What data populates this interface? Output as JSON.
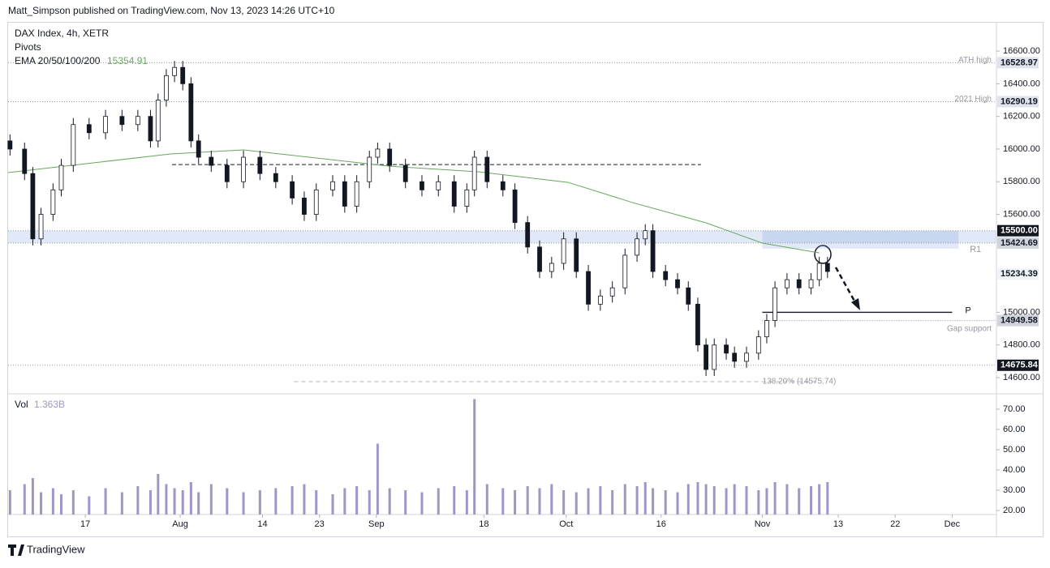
{
  "header": {
    "text": "Matt_Simpson published on TradingView.com, Nov 13, 2023 14:26 UTC+10"
  },
  "footer": {
    "brand": "TradingView"
  },
  "chart_data": [
    {
      "type": "candlestick",
      "title": "DAX Index, 4h, XETR",
      "subtitle": "Pivots",
      "indicator": {
        "name": "EMA 20/50/100/200",
        "value": 15354.91,
        "color": "#66a85c",
        "x": [
          4.8,
          30.5,
          42,
          65.1,
          79.2,
          93.3,
          103.5,
          115.1,
          124,
          133
        ],
        "values": [
          15856,
          15970,
          15995,
          15895,
          15860,
          15796,
          15672,
          15548,
          15424,
          15364
        ]
      },
      "x": [
        5.1,
        7.4,
        8.7,
        10,
        11.9,
        13.2,
        15.1,
        17.6,
        20.2,
        22.8,
        25.3,
        27.3,
        28.5,
        29.8,
        31.1,
        32.4,
        33.7,
        34.9,
        36.9,
        39.4,
        42,
        44.6,
        47.1,
        49.7,
        51.6,
        53.5,
        56.1,
        58,
        59.9,
        61.9,
        63.2,
        65.1,
        67.6,
        70.2,
        72.8,
        75.3,
        77.3,
        78.5,
        80.5,
        83,
        84.9,
        86.9,
        88.8,
        90.7,
        92.6,
        94.6,
        96.5,
        98.4,
        100.3,
        102.3,
        104.2,
        105.5,
        106.7,
        108.7,
        110.6,
        112.3,
        113.8,
        115.1,
        116.4,
        118.3,
        119.6,
        121.5,
        123.4,
        124.7,
        126,
        127.9,
        129.8,
        131.7,
        133,
        134.3
      ],
      "open": [
        16050,
        16000,
        15850,
        15450,
        15600,
        15750,
        15900,
        16150,
        16100,
        16200,
        16150,
        16200,
        16050,
        16300,
        16450,
        16500,
        16400,
        16050,
        15950,
        15900,
        15800,
        15950,
        15850,
        15800,
        15700,
        15600,
        15750,
        15800,
        15650,
        15800,
        15950,
        16000,
        15900,
        15800,
        15750,
        15800,
        15650,
        15750,
        15950,
        15800,
        15750,
        15550,
        15400,
        15250,
        15300,
        15450,
        15250,
        15050,
        15100,
        15150,
        15350,
        15450,
        15500,
        15250,
        15200,
        15150,
        15050,
        14800,
        14650,
        14800,
        14750,
        14700,
        14750,
        14850,
        14950,
        15150,
        15200,
        15150,
        15200,
        15300
      ],
      "high": [
        16090,
        16040,
        15890,
        15640,
        15790,
        15940,
        16190,
        16190,
        16240,
        16240,
        16240,
        16240,
        16340,
        16490,
        16540,
        16540,
        16440,
        16090,
        15990,
        15940,
        15990,
        15990,
        15890,
        15840,
        15740,
        15790,
        15840,
        15840,
        15840,
        15990,
        16040,
        16040,
        15940,
        15840,
        15840,
        15840,
        15790,
        15990,
        15990,
        15840,
        15790,
        15590,
        15440,
        15340,
        15490,
        15490,
        15290,
        15140,
        15190,
        15390,
        15490,
        15540,
        15540,
        15290,
        15240,
        15190,
        15090,
        14840,
        14840,
        14840,
        14790,
        14790,
        14890,
        14990,
        15190,
        15240,
        15240,
        15240,
        15340,
        15340
      ],
      "low": [
        15960,
        15810,
        15410,
        15410,
        15560,
        15710,
        15860,
        16060,
        16060,
        16110,
        16110,
        16010,
        16010,
        16260,
        16410,
        16360,
        16010,
        15910,
        15860,
        15760,
        15760,
        15810,
        15760,
        15660,
        15560,
        15560,
        15710,
        15610,
        15610,
        15760,
        15910,
        15860,
        15760,
        15710,
        15710,
        15610,
        15610,
        15710,
        15760,
        15710,
        15510,
        15360,
        15210,
        15210,
        15260,
        15210,
        15010,
        15010,
        15060,
        15110,
        15310,
        15410,
        15210,
        15160,
        15110,
        15010,
        14760,
        14610,
        14610,
        14710,
        14660,
        14660,
        14710,
        14810,
        14910,
        15110,
        15110,
        15110,
        15160,
        15210
      ],
      "close": [
        16000,
        15850,
        15450,
        15600,
        15750,
        15900,
        16150,
        16100,
        16200,
        16150,
        16200,
        16050,
        16300,
        16450,
        16500,
        16400,
        16050,
        15950,
        15900,
        15800,
        15950,
        15850,
        15800,
        15700,
        15600,
        15750,
        15800,
        15650,
        15800,
        15950,
        16000,
        15900,
        15800,
        15750,
        15800,
        15650,
        15750,
        15950,
        15800,
        15750,
        15550,
        15400,
        15250,
        15300,
        15450,
        15250,
        15050,
        15100,
        15150,
        15350,
        15450,
        15500,
        15250,
        15200,
        15150,
        15050,
        14800,
        14650,
        14800,
        14750,
        14700,
        14750,
        14850,
        14950,
        15150,
        15200,
        15150,
        15200,
        15300,
        15250
      ],
      "ylim": [
        14506,
        16774
      ],
      "yticks": [
        {
          "value": 16600,
          "label": "16600.00"
        },
        {
          "value": 16400,
          "label": "16400.00"
        },
        {
          "value": 16200,
          "label": "16200.00"
        },
        {
          "value": 16000,
          "label": "16000.00"
        },
        {
          "value": 15800,
          "label": "15800.00"
        },
        {
          "value": 15600,
          "label": "15600.00"
        },
        {
          "value": 15000,
          "label": "15000.00"
        },
        {
          "value": 14800,
          "label": "14800.00"
        },
        {
          "value": 14600,
          "label": "14600.00"
        }
      ],
      "xlim": [
        4.8,
        161
      ],
      "xticks": [
        {
          "value": 17,
          "label": "17"
        },
        {
          "value": 32,
          "label": "Aug"
        },
        {
          "value": 45,
          "label": "14"
        },
        {
          "value": 54,
          "label": "23"
        },
        {
          "value": 63,
          "label": "Sep"
        },
        {
          "value": 80,
          "label": "18"
        },
        {
          "value": 93,
          "label": "Oct"
        },
        {
          "value": 108,
          "label": "16"
        },
        {
          "value": 124,
          "label": "Nov"
        },
        {
          "value": 136,
          "label": "13"
        },
        {
          "value": 145,
          "label": "22"
        },
        {
          "value": 154,
          "label": "Dec"
        }
      ],
      "levels": [
        {
          "name": "ATH high",
          "value": 16528.97,
          "tag": "#e0e3eb"
        },
        {
          "name": "2021 High",
          "value": 16290.19,
          "tag": "#e0e3eb"
        },
        {
          "value": 15500,
          "label": "15500.00",
          "tag": "#131722"
        },
        {
          "value": 15424.69,
          "tag": "#d1d4dc"
        },
        {
          "value": 15234.39,
          "tag": "#f0f3fa"
        },
        {
          "name": "Gap support",
          "value": 14949.58,
          "tag": "#d1d4dc",
          "from": 124
        },
        {
          "value": 14675.84,
          "tag": "#131722"
        }
      ],
      "zones": [
        {
          "low": 15424.69,
          "high": 15500,
          "from": 4.8,
          "to": 161
        },
        {
          "name": "R1",
          "low": 15390,
          "high": 15500,
          "from": 124,
          "to": 155
        }
      ],
      "pivot": {
        "name": "P",
        "value": 15000,
        "from": 124,
        "to": 154
      },
      "poc": {
        "value": 15905,
        "from": 30.7,
        "to": 114.3
      },
      "fib": {
        "label": "138.20% (14575.74)",
        "value": 14575.74,
        "from": 50,
        "to": 133
      }
    },
    {
      "type": "bar",
      "title": "Vol",
      "legend_value": "1.363B",
      "color": "#9f96c8",
      "x": [
        5.1,
        7.4,
        8.7,
        10,
        11.9,
        13.2,
        15.1,
        17.6,
        20.2,
        22.8,
        25.3,
        27.3,
        28.5,
        29.8,
        31.1,
        32.4,
        33.7,
        34.9,
        36.9,
        39.4,
        42,
        44.6,
        47.1,
        49.7,
        51.6,
        53.5,
        56.1,
        58,
        59.9,
        61.9,
        63.2,
        65.1,
        67.6,
        70.2,
        72.8,
        75.3,
        77.3,
        78.5,
        80.5,
        83,
        84.9,
        86.9,
        88.8,
        90.7,
        92.6,
        94.6,
        96.5,
        98.4,
        100.3,
        102.3,
        104.2,
        105.5,
        106.7,
        108.7,
        110.6,
        112.3,
        113.8,
        115.1,
        116.4,
        118.3,
        119.6,
        121.5,
        123.4,
        124.7,
        126,
        127.9,
        129.8,
        131.7,
        133,
        134.3
      ],
      "values": [
        30,
        33,
        36,
        29,
        31,
        28,
        30,
        27,
        31,
        29,
        32,
        30,
        38,
        33,
        31,
        30,
        34,
        29,
        33,
        31,
        29,
        30,
        31,
        32,
        33,
        30,
        28,
        31,
        32,
        30,
        53,
        31,
        30,
        29,
        31,
        32,
        30,
        75,
        33,
        31,
        30,
        32,
        31,
        33,
        30,
        29,
        31,
        32,
        30,
        33,
        32,
        34,
        31,
        30,
        29,
        33,
        34,
        33,
        32,
        31,
        33,
        32,
        30,
        31,
        34,
        33,
        31,
        32,
        33,
        34
      ],
      "ylim": [
        18,
        77.2
      ],
      "yticks": [
        {
          "value": 70,
          "label": "70.00"
        },
        {
          "value": 60,
          "label": "60.00"
        },
        {
          "value": 50,
          "label": "50.00"
        },
        {
          "value": 40,
          "label": "40.00"
        },
        {
          "value": 30,
          "label": "30.00"
        },
        {
          "value": 20,
          "label": "20.00"
        }
      ]
    }
  ]
}
